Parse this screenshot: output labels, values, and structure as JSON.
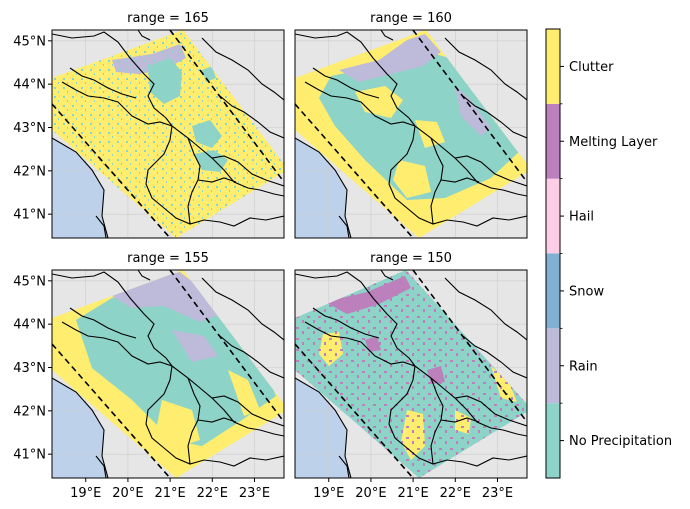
{
  "chart_data": {
    "type": "heatmap",
    "panels": [
      {
        "title": "range = 165",
        "classes": [
          "Clutter",
          "Rain",
          "No Precipitation"
        ]
      },
      {
        "title": "range = 160",
        "classes": [
          "Clutter",
          "Rain",
          "No Precipitation"
        ]
      },
      {
        "title": "range = 155",
        "classes": [
          "Clutter",
          "Rain",
          "No Precipitation"
        ]
      },
      {
        "title": "range = 150",
        "classes": [
          "No Precipitation",
          "Melting Layer",
          "Clutter"
        ]
      }
    ],
    "x_ticks": [
      "19°E",
      "20°E",
      "21°E",
      "22°E",
      "23°E"
    ],
    "y_ticks": [
      "45°N",
      "44°N",
      "43°N",
      "42°N",
      "41°N"
    ],
    "xlim": [
      18.2,
      23.7
    ],
    "ylim": [
      40.45,
      45.25
    ],
    "colorbar": {
      "categories": [
        "No Precipitation",
        "Rain",
        "Snow",
        "Hail",
        "Melting Layer",
        "Clutter"
      ],
      "colors": [
        "#8dd3c7",
        "#bebada",
        "#80b1d3",
        "#fccde5",
        "#bc80bd",
        "#ffed6f"
      ]
    },
    "background_colors": {
      "land": "#e6e6e6",
      "sea": "#bdd1eb"
    }
  }
}
